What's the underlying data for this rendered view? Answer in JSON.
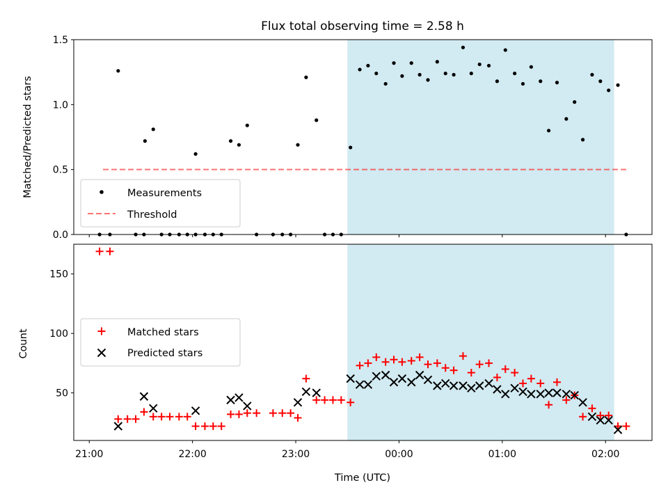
{
  "colors": {
    "band": "#add8e6",
    "measurement": "#000000",
    "threshold": "#ff0000",
    "matched": "#ff0000",
    "predicted": "#000000"
  },
  "chart_data": [
    {
      "type": "scatter",
      "title": "Flux total observing time = 2.58 h",
      "xlabel": "",
      "ylabel": "Matched/Predicted stars",
      "x_unit": "time (UTC), hours after 21:00",
      "xlim": [
        -0.15,
        5.45
      ],
      "ylim": [
        0,
        1.5
      ],
      "yticks": [
        0,
        0.5,
        1.0,
        1.5
      ],
      "ytick_labels": [
        "0.0",
        "0.5",
        "1.0",
        "1.5"
      ],
      "observing_band": {
        "start": "23:30",
        "end": "02:05"
      },
      "threshold": {
        "value": 0.5,
        "from": "21:08",
        "to": "02:12"
      },
      "legend": {
        "position": "lower-left",
        "items": [
          "Measurements",
          "Threshold"
        ]
      },
      "series": [
        {
          "name": "Measurements",
          "marker": "dot",
          "points": [
            [
              0.1,
              0
            ],
            [
              0.2,
              0
            ],
            [
              0.28,
              1.26
            ],
            [
              0.45,
              0
            ],
            [
              0.53,
              0
            ],
            [
              0.54,
              0.72
            ],
            [
              0.62,
              0.81
            ],
            [
              0.7,
              0
            ],
            [
              0.78,
              0
            ],
            [
              0.87,
              0
            ],
            [
              0.95,
              0
            ],
            [
              1.03,
              0
            ],
            [
              1.03,
              0.62
            ],
            [
              1.12,
              0
            ],
            [
              1.2,
              0
            ],
            [
              1.28,
              0
            ],
            [
              1.37,
              0.72
            ],
            [
              1.45,
              0.69
            ],
            [
              1.53,
              0.84
            ],
            [
              1.62,
              0
            ],
            [
              1.78,
              0
            ],
            [
              1.87,
              0
            ],
            [
              1.95,
              0
            ],
            [
              2.02,
              0.69
            ],
            [
              2.1,
              1.21
            ],
            [
              2.2,
              0.88
            ],
            [
              2.28,
              0
            ],
            [
              2.36,
              0
            ],
            [
              2.44,
              0
            ],
            [
              2.53,
              0.67
            ],
            [
              2.62,
              1.27
            ],
            [
              2.7,
              1.3
            ],
            [
              2.78,
              1.24
            ],
            [
              2.87,
              1.16
            ],
            [
              2.95,
              1.32
            ],
            [
              3.03,
              1.22
            ],
            [
              3.12,
              1.32
            ],
            [
              3.2,
              1.23
            ],
            [
              3.28,
              1.19
            ],
            [
              3.37,
              1.33
            ],
            [
              3.45,
              1.24
            ],
            [
              3.53,
              1.23
            ],
            [
              3.62,
              1.44
            ],
            [
              3.7,
              1.24
            ],
            [
              3.78,
              1.31
            ],
            [
              3.87,
              1.3
            ],
            [
              3.95,
              1.18
            ],
            [
              4.03,
              1.42
            ],
            [
              4.12,
              1.24
            ],
            [
              4.2,
              1.16
            ],
            [
              4.28,
              1.29
            ],
            [
              4.37,
              1.18
            ],
            [
              4.45,
              0.8
            ],
            [
              4.53,
              1.17
            ],
            [
              4.62,
              0.89
            ],
            [
              4.7,
              1.02
            ],
            [
              4.78,
              0.73
            ],
            [
              4.87,
              1.23
            ],
            [
              4.95,
              1.18
            ],
            [
              5.03,
              1.11
            ],
            [
              5.12,
              1.15
            ],
            [
              5.2,
              0
            ]
          ]
        }
      ]
    },
    {
      "type": "scatter",
      "title": "",
      "xlabel": "Time (UTC)",
      "ylabel": "Count",
      "x_unit": "time (UTC), hours after 21:00",
      "xlim": [
        -0.15,
        5.45
      ],
      "ylim": [
        10,
        175
      ],
      "xticks": [
        0,
        1,
        2,
        3,
        4,
        5
      ],
      "xtick_labels": [
        "21:00",
        "22:00",
        "23:00",
        "00:00",
        "01:00",
        "02:00"
      ],
      "yticks": [
        50,
        100,
        150
      ],
      "ytick_labels": [
        "50",
        "100",
        "150"
      ],
      "observing_band": {
        "start": "23:30",
        "end": "02:05"
      },
      "legend": {
        "position": "center-left",
        "items": [
          "Matched stars",
          "Predicted stars"
        ]
      },
      "series": [
        {
          "name": "Matched stars",
          "marker": "plus",
          "points": [
            [
              0.1,
              169
            ],
            [
              0.2,
              169
            ],
            [
              0.28,
              28
            ],
            [
              0.37,
              28
            ],
            [
              0.45,
              28
            ],
            [
              0.53,
              34
            ],
            [
              0.62,
              30
            ],
            [
              0.7,
              30
            ],
            [
              0.78,
              30
            ],
            [
              0.87,
              30
            ],
            [
              0.95,
              30
            ],
            [
              1.03,
              22
            ],
            [
              1.12,
              22
            ],
            [
              1.2,
              22
            ],
            [
              1.28,
              22
            ],
            [
              1.37,
              32
            ],
            [
              1.45,
              32
            ],
            [
              1.53,
              33
            ],
            [
              1.62,
              33
            ],
            [
              1.78,
              33
            ],
            [
              1.87,
              33
            ],
            [
              1.95,
              33
            ],
            [
              2.02,
              29
            ],
            [
              2.1,
              62
            ],
            [
              2.2,
              44
            ],
            [
              2.28,
              44
            ],
            [
              2.36,
              44
            ],
            [
              2.44,
              44
            ],
            [
              2.53,
              42
            ],
            [
              2.62,
              73
            ],
            [
              2.7,
              75
            ],
            [
              2.78,
              80
            ],
            [
              2.87,
              76
            ],
            [
              2.95,
              78
            ],
            [
              3.03,
              76
            ],
            [
              3.12,
              77
            ],
            [
              3.2,
              80
            ],
            [
              3.28,
              74
            ],
            [
              3.37,
              75
            ],
            [
              3.45,
              71
            ],
            [
              3.53,
              69
            ],
            [
              3.62,
              81
            ],
            [
              3.7,
              67
            ],
            [
              3.78,
              74
            ],
            [
              3.87,
              75
            ],
            [
              3.95,
              63
            ],
            [
              4.03,
              70
            ],
            [
              4.12,
              67
            ],
            [
              4.2,
              58
            ],
            [
              4.28,
              62
            ],
            [
              4.37,
              58
            ],
            [
              4.45,
              40
            ],
            [
              4.53,
              59
            ],
            [
              4.62,
              44
            ],
            [
              4.7,
              48
            ],
            [
              4.78,
              30
            ],
            [
              4.87,
              37
            ],
            [
              4.95,
              31
            ],
            [
              5.03,
              31
            ],
            [
              5.12,
              22
            ],
            [
              5.2,
              22
            ]
          ]
        },
        {
          "name": "Predicted stars",
          "marker": "x",
          "points": [
            [
              0.28,
              22
            ],
            [
              0.53,
              47
            ],
            [
              0.62,
              37
            ],
            [
              1.03,
              35
            ],
            [
              1.37,
              44
            ],
            [
              1.45,
              46
            ],
            [
              1.53,
              39
            ],
            [
              2.02,
              42
            ],
            [
              2.1,
              51
            ],
            [
              2.2,
              50
            ],
            [
              2.53,
              62
            ],
            [
              2.62,
              57
            ],
            [
              2.7,
              57
            ],
            [
              2.78,
              64
            ],
            [
              2.87,
              65
            ],
            [
              2.95,
              59
            ],
            [
              3.03,
              62
            ],
            [
              3.12,
              59
            ],
            [
              3.2,
              65
            ],
            [
              3.28,
              61
            ],
            [
              3.37,
              56
            ],
            [
              3.45,
              58
            ],
            [
              3.53,
              56
            ],
            [
              3.62,
              56
            ],
            [
              3.7,
              54
            ],
            [
              3.78,
              56
            ],
            [
              3.87,
              58
            ],
            [
              3.95,
              53
            ],
            [
              4.03,
              49
            ],
            [
              4.12,
              54
            ],
            [
              4.2,
              51
            ],
            [
              4.28,
              49
            ],
            [
              4.37,
              49
            ],
            [
              4.45,
              50
            ],
            [
              4.53,
              50
            ],
            [
              4.62,
              49
            ],
            [
              4.7,
              48
            ],
            [
              4.78,
              42
            ],
            [
              4.87,
              30
            ],
            [
              4.95,
              27
            ],
            [
              5.03,
              27
            ],
            [
              5.12,
              19
            ]
          ]
        }
      ]
    }
  ]
}
